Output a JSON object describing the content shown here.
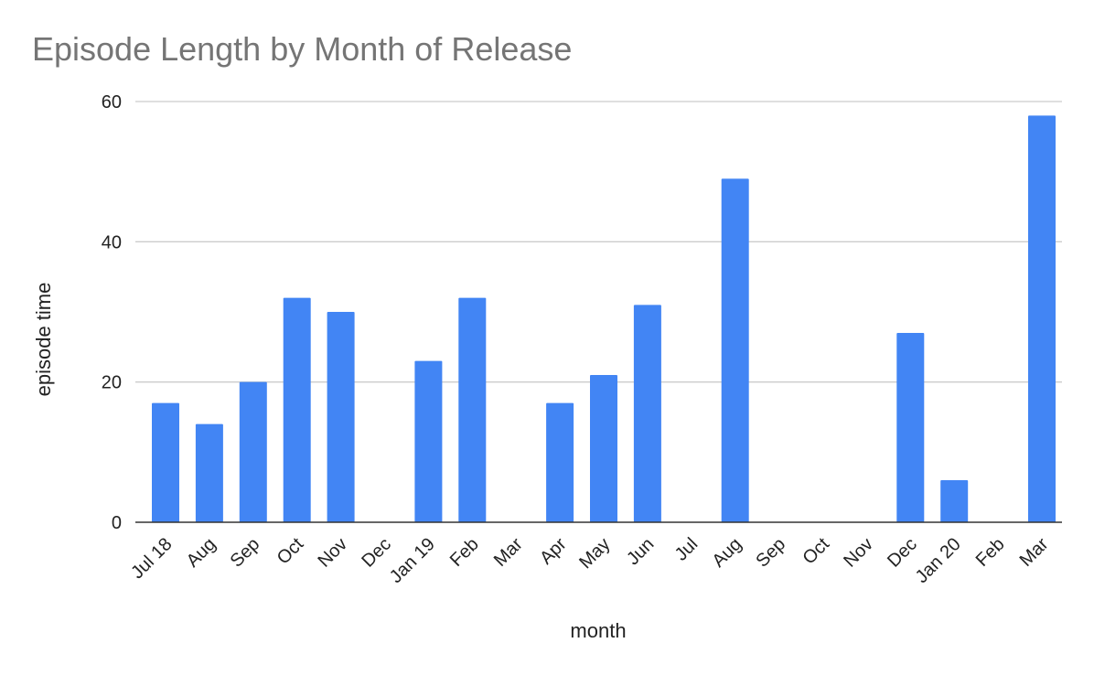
{
  "chart_data": {
    "type": "bar",
    "title": "Episode Length by Month of Release",
    "xlabel": "month",
    "ylabel": "episode time",
    "ylim": [
      0,
      60
    ],
    "y_ticks": [
      "0",
      "20",
      "40",
      "60"
    ],
    "grid": true,
    "legend": "none",
    "bar_color": "#4285f4",
    "categories": [
      "Jul 18",
      "Aug",
      "Sep",
      "Oct",
      "Nov",
      "Dec",
      "Jan 19",
      "Feb",
      "Mar",
      "Apr",
      "May",
      "Jun",
      "Jul",
      "Aug",
      "Sep",
      "Oct",
      "Nov",
      "Dec",
      "Jan 20",
      "Feb",
      "Mar"
    ],
    "values": [
      17,
      14,
      20,
      32,
      30,
      0,
      23,
      32,
      0,
      17,
      21,
      31,
      0,
      49,
      0,
      0,
      0,
      27,
      6,
      0,
      58
    ]
  }
}
